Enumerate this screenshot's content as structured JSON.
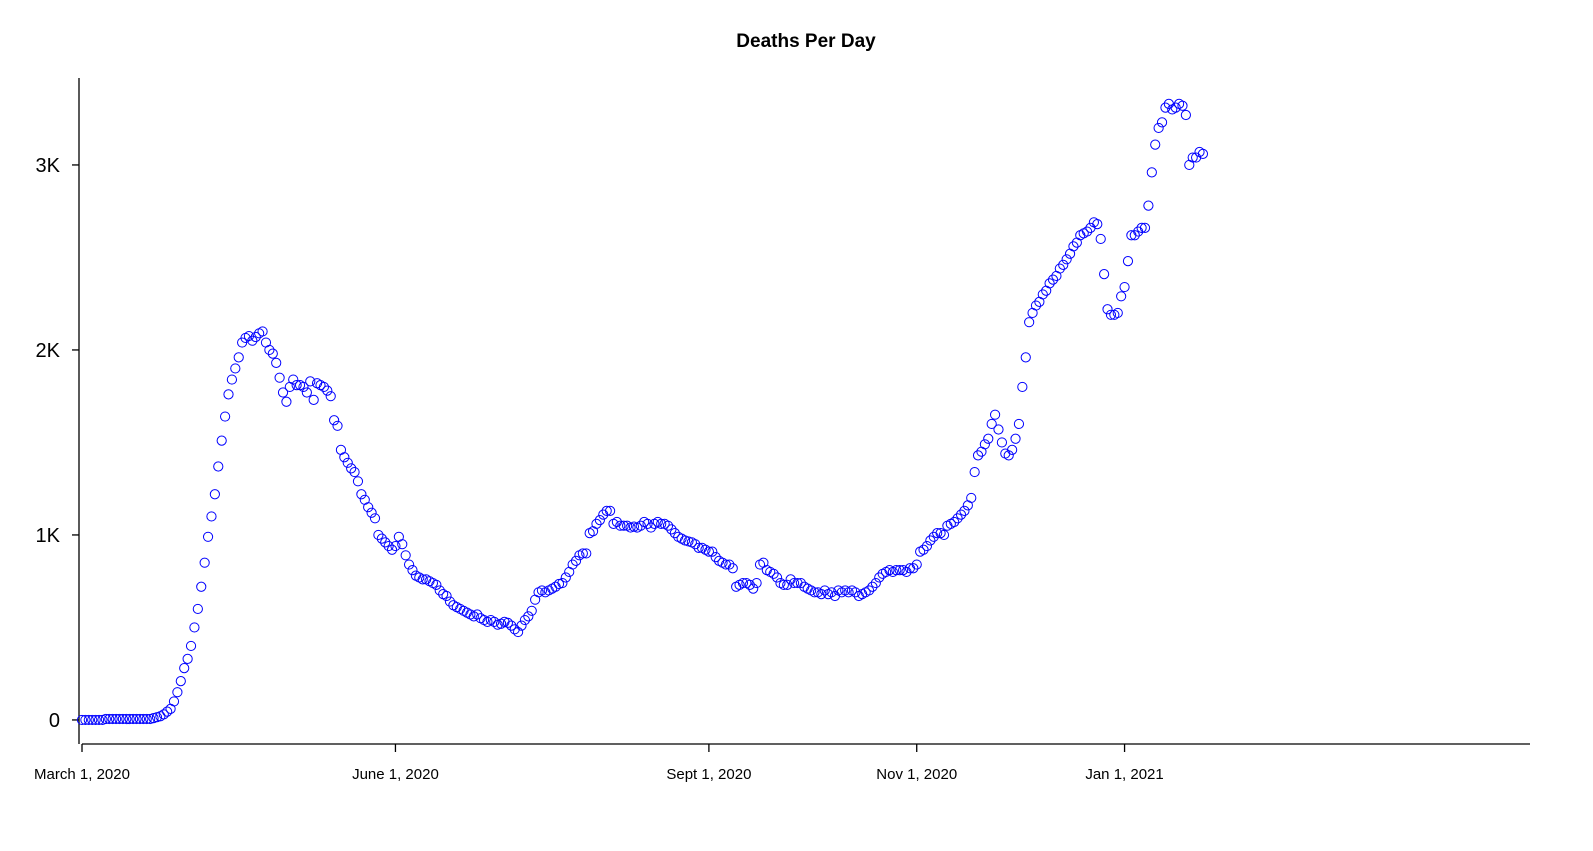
{
  "chart_data": {
    "type": "scatter",
    "title": "Deaths Per Day",
    "xlabel": "",
    "ylabel": "",
    "x_start": "2020-03-01",
    "x_end": "2021-04-30",
    "ylim": [
      -130,
      3470
    ],
    "y_ticks": [
      {
        "value": 0,
        "label": "0"
      },
      {
        "value": 1000,
        "label": "1K"
      },
      {
        "value": 2000,
        "label": "2K"
      },
      {
        "value": 3000,
        "label": "3K"
      }
    ],
    "x_ticks": [
      {
        "date": "2020-03-01",
        "label": "March 1, 2020"
      },
      {
        "date": "2020-06-01",
        "label": "June 1, 2020"
      },
      {
        "date": "2020-09-01",
        "label": "Sept 1, 2020"
      },
      {
        "date": "2020-11-01",
        "label": "Nov 1, 2020"
      },
      {
        "date": "2021-01-01",
        "label": "Jan 1, 2021"
      }
    ],
    "marker": "open-circle",
    "marker_color": "#0000ff",
    "grid": false,
    "legend": "none",
    "series": [
      {
        "start_date": "2020-03-01",
        "values": [
          0,
          0,
          0,
          0,
          0,
          0,
          0,
          5,
          5,
          5,
          5,
          5,
          5,
          5,
          5,
          5,
          5,
          5,
          5,
          5,
          5,
          10,
          15,
          20,
          30,
          45,
          60,
          100,
          150,
          210,
          280,
          330,
          400,
          500,
          600,
          720,
          850,
          990,
          1100,
          1220,
          1370,
          1510,
          1640,
          1760,
          1840,
          1900,
          1960,
          2040,
          2065,
          2075,
          2050,
          2070,
          2090,
          2100,
          2040,
          2000,
          1980,
          1930,
          1850,
          1770,
          1720,
          1800,
          1840,
          1810,
          1810,
          1800,
          1770,
          1830,
          1730,
          1820,
          1810,
          1800,
          1780,
          1750,
          1620,
          1590,
          1460,
          1420,
          1390,
          1360,
          1340,
          1290,
          1220,
          1190,
          1150,
          1120,
          1090,
          1000,
          980,
          960,
          940,
          920,
          940,
          990,
          950,
          890,
          840,
          810,
          780,
          770,
          760,
          760,
          750,
          740,
          730,
          700,
          680,
          670,
          640,
          620,
          610,
          600,
          590,
          580,
          570,
          560,
          570,
          550,
          540,
          530,
          540,
          530,
          515,
          520,
          530,
          525,
          510,
          490,
          475,
          510,
          540,
          560,
          590,
          650,
          690,
          700,
          690,
          700,
          710,
          720,
          735,
          740,
          770,
          800,
          840,
          860,
          890,
          900,
          900,
          1010,
          1020,
          1060,
          1080,
          1110,
          1130,
          1130,
          1060,
          1070,
          1050,
          1050,
          1050,
          1040,
          1045,
          1040,
          1050,
          1070,
          1060,
          1040,
          1060,
          1070,
          1060,
          1060,
          1050,
          1030,
          1010,
          990,
          980,
          970,
          965,
          960,
          950,
          930,
          930,
          920,
          910,
          910,
          880,
          860,
          850,
          840,
          840,
          820,
          720,
          730,
          740,
          740,
          730,
          710,
          740,
          840,
          850,
          810,
          800,
          790,
          770,
          740,
          730,
          730,
          760,
          740,
          740,
          740,
          720,
          710,
          700,
          690,
          690,
          680,
          700,
          680,
          690,
          670,
          700,
          690,
          700,
          690,
          700,
          690,
          670,
          680,
          690,
          700,
          720,
          740,
          770,
          790,
          800,
          810,
          800,
          810,
          810,
          810,
          800,
          820,
          820,
          840,
          910,
          920,
          940,
          970,
          990,
          1010,
          1010,
          1000,
          1050,
          1060,
          1070,
          1090,
          1110,
          1130,
          1160,
          1200,
          1340,
          1430,
          1450,
          1490,
          1520,
          1600,
          1650,
          1570,
          1500,
          1440,
          1430,
          1460,
          1520,
          1600,
          1800,
          1960,
          2150,
          2200,
          2240,
          2260,
          2300,
          2320,
          2360,
          2380,
          2400,
          2440,
          2460,
          2490,
          2520,
          2560,
          2580,
          2620,
          2630,
          2640,
          2660,
          2690,
          2680,
          2600,
          2410,
          2220,
          2190,
          2190,
          2200,
          2290,
          2340,
          2480,
          2620,
          2620,
          2640,
          2660,
          2660,
          2780,
          2960,
          3110,
          3200,
          3230,
          3310,
          3330,
          3300,
          3310,
          3330,
          3320,
          3270,
          3000,
          3040,
          3040,
          3070,
          3060
        ]
      }
    ]
  }
}
